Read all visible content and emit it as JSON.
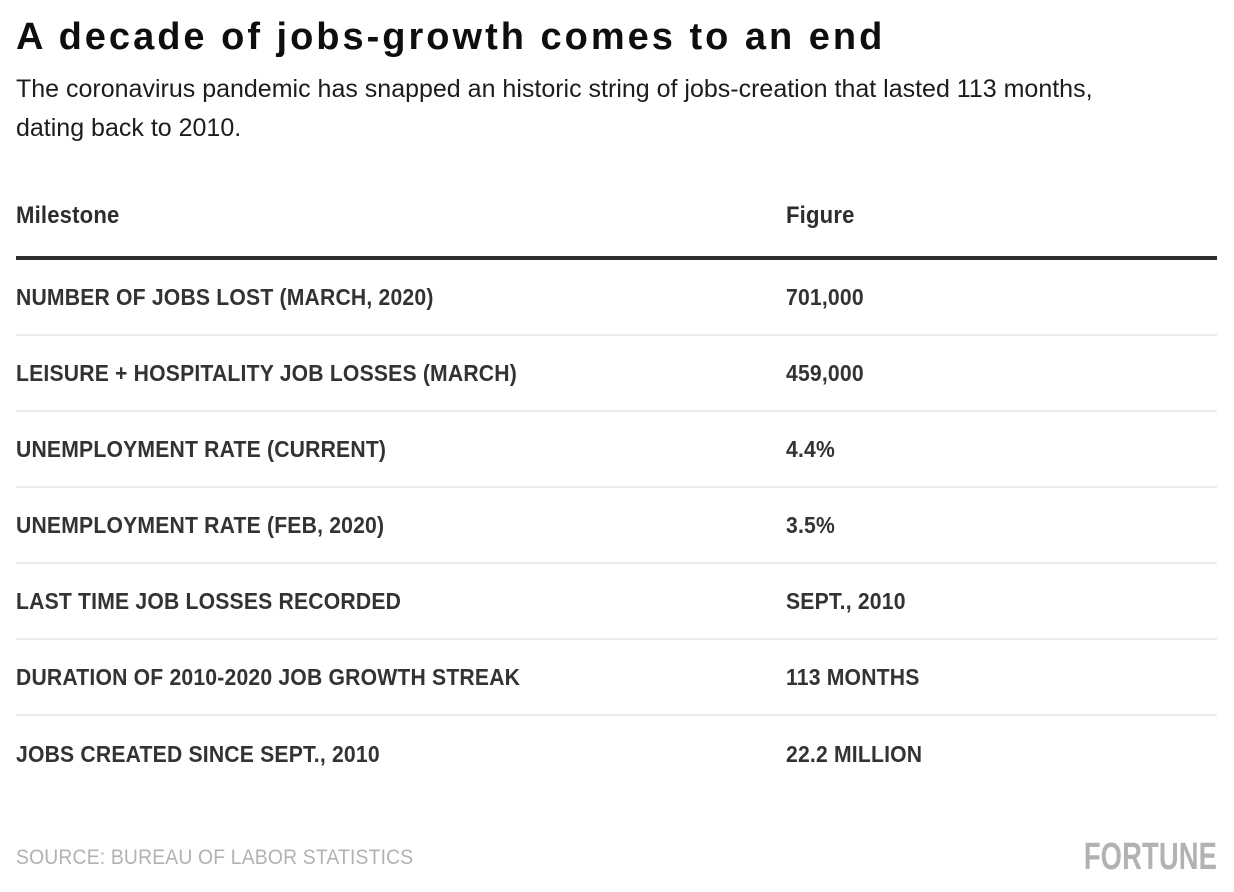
{
  "header": {
    "title": "A decade of jobs-growth comes to an end",
    "subtitle": "The coronavirus pandemic has snapped an historic string of jobs-creation that lasted 113 months, dating back to 2010."
  },
  "chart_data": {
    "type": "table",
    "title": "A decade of jobs-growth comes to an end",
    "subtitle": "The coronavirus pandemic has snapped an historic string of jobs-creation that lasted 113 months, dating back to 2010.",
    "columns": [
      "Milestone",
      "Figure"
    ],
    "rows": [
      {
        "milestone": "NUMBER OF JOBS LOST (MARCH, 2020)",
        "figure": "701,000"
      },
      {
        "milestone": "LEISURE + HOSPITALITY JOB LOSSES (MARCH)",
        "figure": "459,000"
      },
      {
        "milestone": "UNEMPLOYMENT RATE (CURRENT)",
        "figure": "4.4%"
      },
      {
        "milestone": "UNEMPLOYMENT RATE (FEB, 2020)",
        "figure": "3.5%"
      },
      {
        "milestone": "LAST TIME JOB LOSSES RECORDED",
        "figure": "SEPT., 2010"
      },
      {
        "milestone": "DURATION OF 2010-2020 JOB GROWTH STREAK",
        "figure": "113 MONTHS"
      },
      {
        "milestone": "JOBS CREATED SINCE SEPT., 2010",
        "figure": "22.2 MILLION"
      }
    ],
    "source": "SOURCE: BUREAU OF LABOR STATISTICS",
    "layout": {
      "grid": "off",
      "header_rule_color": "#2d2d2d",
      "row_rule_color": "#ececec"
    }
  },
  "footer": {
    "source": "SOURCE: BUREAU OF LABOR STATISTICS",
    "logo": "FORTUNE"
  },
  "colors": {
    "background": "#ffffff",
    "title": "#0e0e0e",
    "body_text": "#333333",
    "header_rule": "#2d2d2d",
    "row_divider": "#ececec",
    "muted_gray": "#b2b2b2"
  }
}
